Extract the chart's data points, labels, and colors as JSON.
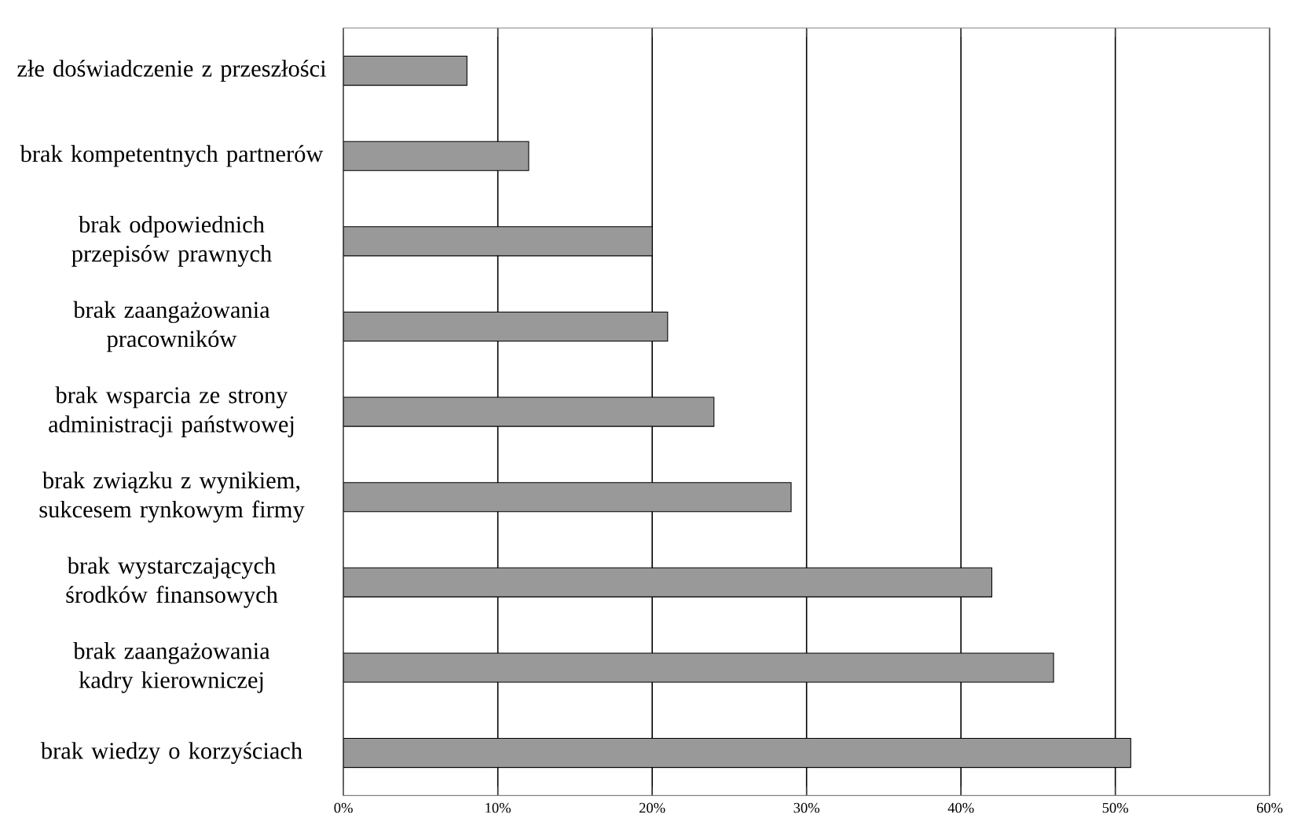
{
  "chart_data": {
    "type": "bar",
    "orientation": "horizontal",
    "categories": [
      "złe doświadczenie z przeszłości",
      "brak kompetentnych partnerów",
      "brak odpowiednich przepisów prawnych",
      "brak zaangażowania pracowników",
      "brak wsparcia ze strony administracji państwowej",
      "brak związku z wynikiem, sukcesem rynkowym firmy",
      "brak wystarczających środków finansowych",
      "brak zaangażowania kadry kierowniczej",
      "brak wiedzy o korzyściach"
    ],
    "values": [
      8,
      12,
      20,
      21,
      24,
      29,
      42,
      46,
      51
    ],
    "color": "#999999",
    "xlim": [
      0,
      60
    ],
    "xticks": [
      {
        "value": 0,
        "label": "0%"
      },
      {
        "value": 10,
        "label": "10%"
      },
      {
        "value": 20,
        "label": "20%"
      },
      {
        "value": 30,
        "label": "30%"
      },
      {
        "value": 40,
        "label": "40%"
      },
      {
        "value": 50,
        "label": "50%"
      },
      {
        "value": 60,
        "label": "60%"
      }
    ],
    "grid": "x"
  }
}
